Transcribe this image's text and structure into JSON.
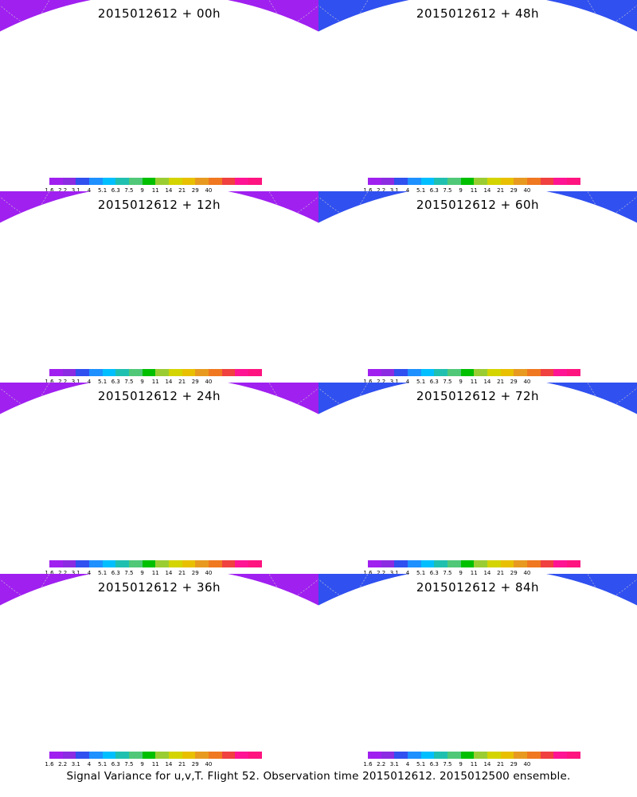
{
  "panels": [
    {
      "title": "2015012612 + 00h",
      "level": 0
    },
    {
      "title": "2015012612 + 48h",
      "level": 2
    },
    {
      "title": "2015012612 + 12h",
      "level": 0
    },
    {
      "title": "2015012612 + 60h",
      "level": 2
    },
    {
      "title": "2015012612 + 24h",
      "level": 1
    },
    {
      "title": "2015012612 + 72h",
      "level": 3
    },
    {
      "title": "2015012612 + 36h",
      "level": 1
    },
    {
      "title": "2015012612 + 84h",
      "level": 3
    }
  ],
  "colorbar": {
    "labels": [
      "1.6",
      "2.2",
      "3.1",
      "4",
      "5.1",
      "6.3",
      "7.5",
      "9",
      "11",
      "14",
      "21",
      "29",
      "40"
    ],
    "colors": [
      "#a020f0",
      "#8b2be2",
      "#3050f0",
      "#1e90ff",
      "#00bfff",
      "#20c0b0",
      "#50c878",
      "#00c000",
      "#9acd32",
      "#d4d400",
      "#e8c000",
      "#e89a20",
      "#f07820",
      "#f04040",
      "#ff1493",
      "#ff1480"
    ]
  },
  "footer": "Signal Variance for u,v,T. Flight 52. Observation time 2015012612. 2015012500 ensemble."
}
